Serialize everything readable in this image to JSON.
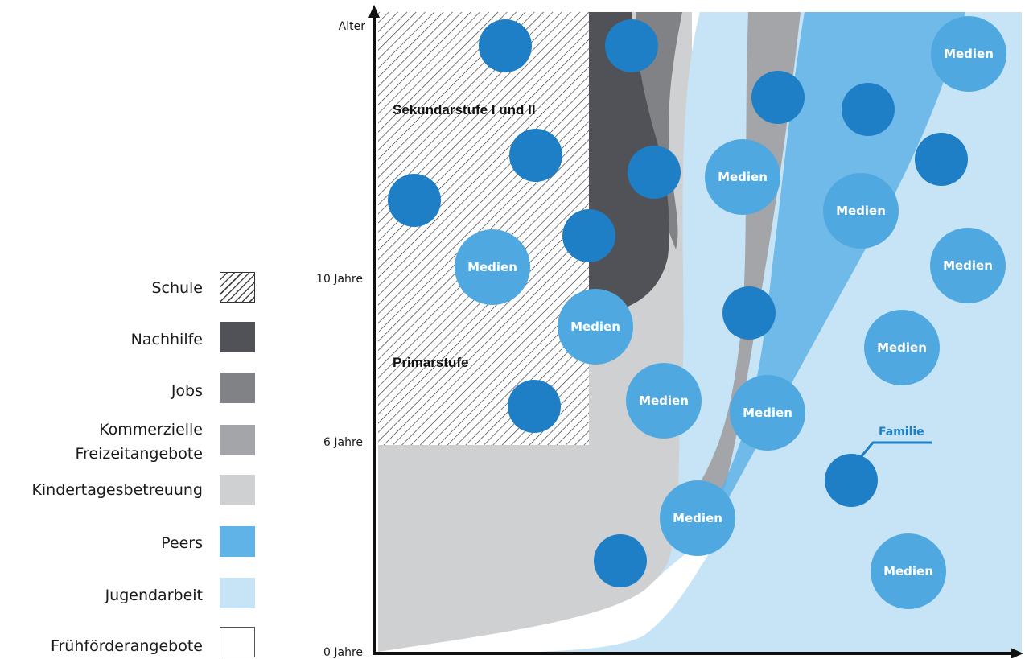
{
  "legend": {
    "school": "Schule",
    "tutoring": "Nachhilfe",
    "jobs": "Jobs",
    "commercial_line1": "Kommerzielle",
    "commercial_line2": "Freizeitangebote",
    "daycare": "Kindertagesbetreuung",
    "peers": "Peers",
    "youth_work": "Jugendarbeit",
    "early_support": "Frühförderangebote"
  },
  "axis": {
    "y_top": "Alter",
    "y_10": "10 Jahre",
    "y_6": "6 Jahre",
    "y_0": "0 Jahre"
  },
  "stages": {
    "secondary": "Sekundarstufe I und II",
    "primary": "Primarstufe"
  },
  "media_label": "Medien",
  "family_label": "Familie",
  "colors": {
    "school_hatch": "#333333",
    "tutoring": "#505257",
    "jobs": "#808285",
    "commercial": "#a3a5a8",
    "daycare": "#cfd0d2",
    "peers": "#5fb3e6",
    "youth_work": "#c7e4f7",
    "family_circle": "#1e7fc6",
    "media_circle": "#4fa9e0"
  }
}
